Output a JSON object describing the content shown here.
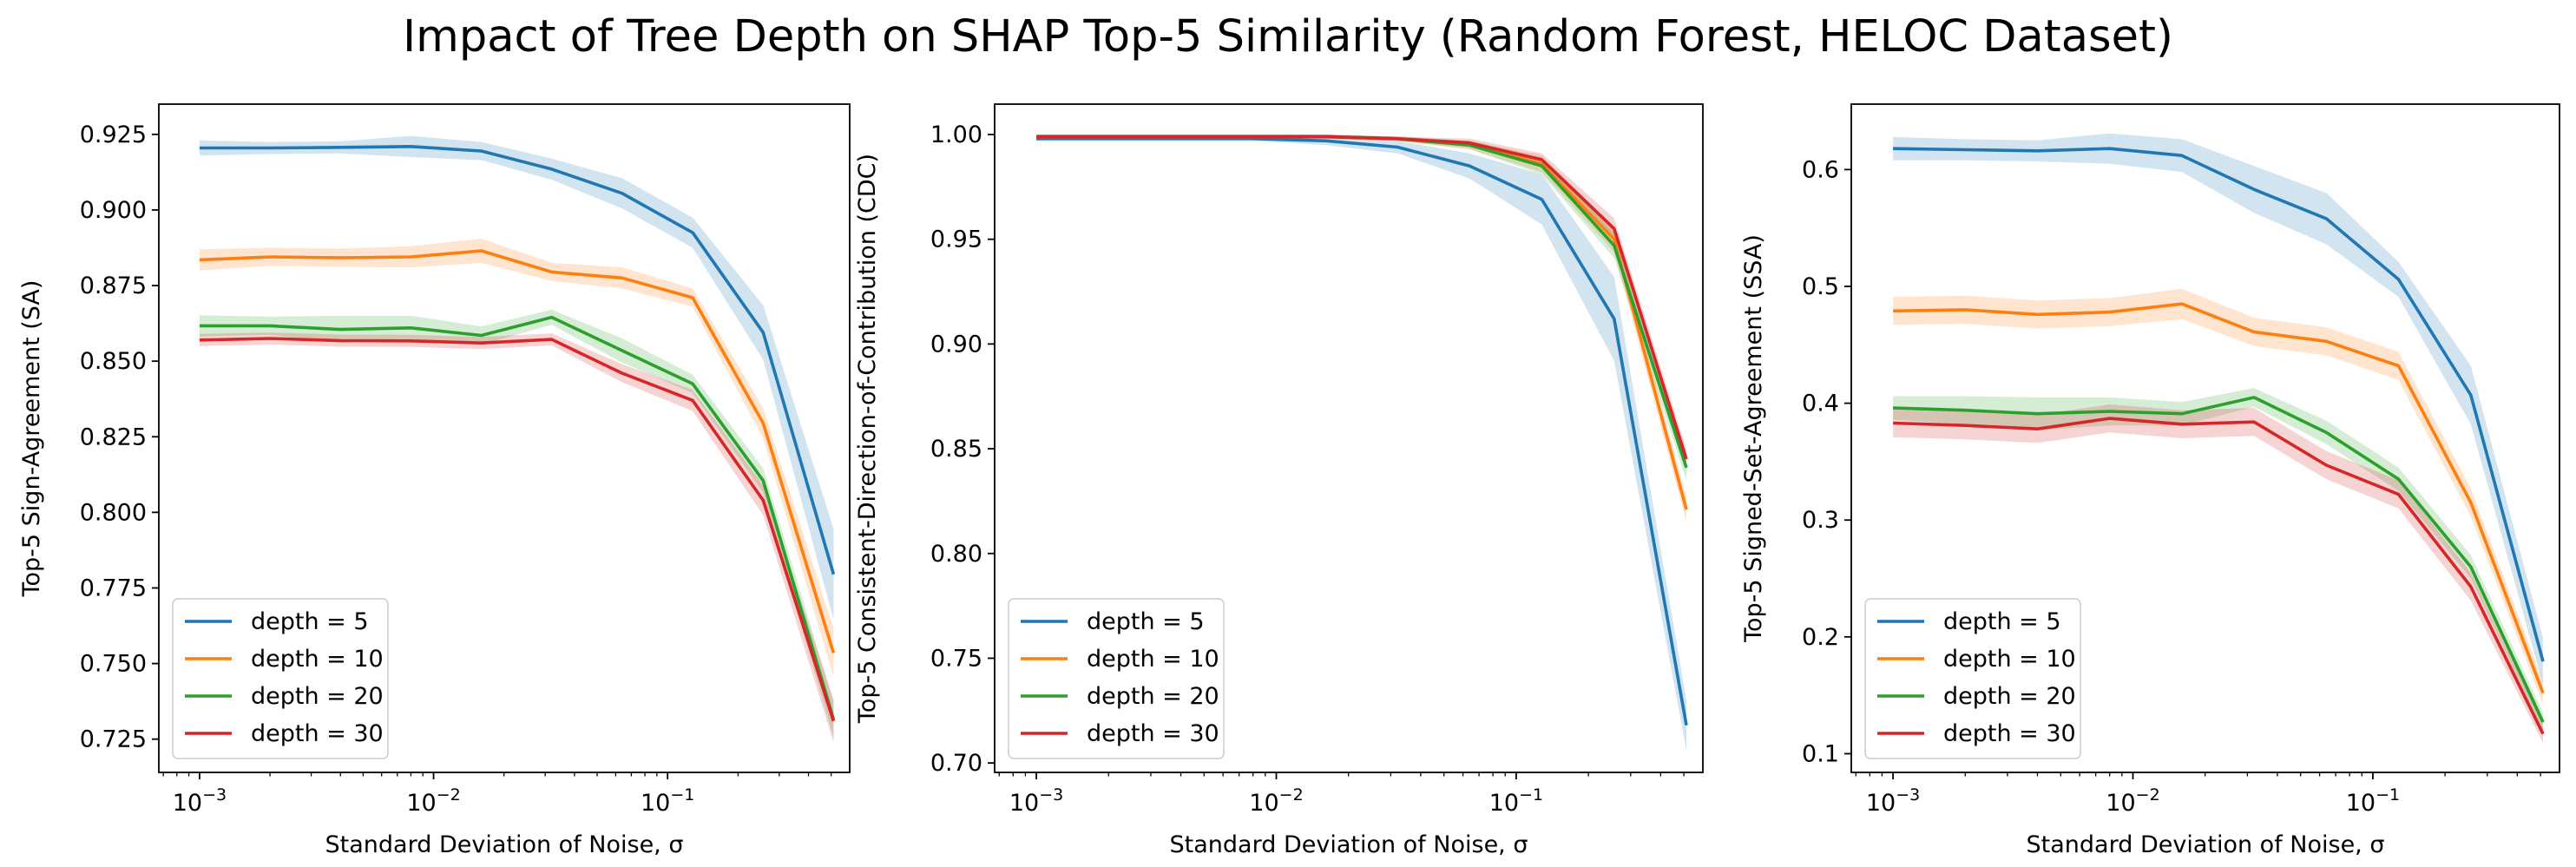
{
  "figure": {
    "title": "Impact of Tree Depth on SHAP Top-5 Similarity (Random Forest, HELOC Dataset)"
  },
  "series_colors": [
    "#1f77b4",
    "#ff7f0e",
    "#2ca02c",
    "#d62728"
  ],
  "chart_data": [
    {
      "type": "line",
      "title": "",
      "xlabel": "Standard Deviation of Noise, σ",
      "ylabel": "Top-5 Sign-Agreement (SA)",
      "xscale": "log",
      "xlim": [
        0.00067,
        0.6
      ],
      "ylim": [
        0.714,
        0.935
      ],
      "yticks": [
        0.725,
        0.75,
        0.775,
        0.8,
        0.825,
        0.85,
        0.875,
        0.9,
        0.925
      ],
      "ytick_labels": [
        "0.725",
        "0.750",
        "0.775",
        "0.800",
        "0.825",
        "0.850",
        "0.875",
        "0.900",
        "0.925"
      ],
      "xticks": [
        0.001,
        0.01,
        0.1
      ],
      "xtick_labels": [
        [
          "10",
          "−3"
        ],
        [
          "10",
          "−2"
        ],
        [
          "10",
          "−1"
        ]
      ],
      "legend_position": "lower-left",
      "x": [
        0.001,
        0.002,
        0.004,
        0.008,
        0.016,
        0.032,
        0.064,
        0.128,
        0.256,
        0.512
      ],
      "series": [
        {
          "name": "depth = 5",
          "values": [
            0.9205,
            0.9205,
            0.9207,
            0.921,
            0.9195,
            0.9135,
            0.9055,
            0.8925,
            0.8595,
            0.7795
          ],
          "band": [
            0.0025,
            0.002,
            0.002,
            0.0035,
            0.003,
            0.0035,
            0.005,
            0.005,
            0.009,
            0.015
          ]
        },
        {
          "name": "depth = 10",
          "values": [
            0.8835,
            0.8845,
            0.8842,
            0.8845,
            0.8865,
            0.8795,
            0.8775,
            0.871,
            0.8295,
            0.7535
          ],
          "band": [
            0.0035,
            0.003,
            0.003,
            0.0035,
            0.004,
            0.003,
            0.0035,
            0.003,
            0.005,
            0.008
          ]
        },
        {
          "name": "depth = 20",
          "values": [
            0.8617,
            0.8617,
            0.8605,
            0.861,
            0.8585,
            0.8645,
            0.8535,
            0.8425,
            0.8105,
            0.7315
          ],
          "band": [
            0.0035,
            0.003,
            0.0045,
            0.004,
            0.003,
            0.0025,
            0.004,
            0.003,
            0.004,
            0.006
          ]
        },
        {
          "name": "depth = 30",
          "values": [
            0.857,
            0.8575,
            0.8568,
            0.8567,
            0.856,
            0.8572,
            0.846,
            0.837,
            0.804,
            0.731
          ],
          "band": [
            0.002,
            0.002,
            0.002,
            0.002,
            0.002,
            0.002,
            0.003,
            0.0035,
            0.005,
            0.007
          ]
        }
      ]
    },
    {
      "type": "line",
      "title": "",
      "xlabel": "Standard Deviation of Noise, σ",
      "ylabel": "Top-5 Consistent-Direction-of-Contribution (CDC)",
      "xscale": "log",
      "xlim": [
        0.00067,
        0.6
      ],
      "ylim": [
        0.6955,
        1.0145
      ],
      "yticks": [
        0.7,
        0.75,
        0.8,
        0.85,
        0.9,
        0.95,
        1.0
      ],
      "ytick_labels": [
        "0.70",
        "0.75",
        "0.80",
        "0.85",
        "0.90",
        "0.95",
        "1.00"
      ],
      "xticks": [
        0.001,
        0.01,
        0.1
      ],
      "xtick_labels": [
        [
          "10",
          "−3"
        ],
        [
          "10",
          "−2"
        ],
        [
          "10",
          "−1"
        ]
      ],
      "legend_position": "lower-left",
      "x": [
        0.001,
        0.002,
        0.004,
        0.008,
        0.016,
        0.032,
        0.064,
        0.128,
        0.256,
        0.512
      ],
      "series": [
        {
          "name": "depth = 5",
          "values": [
            0.998,
            0.998,
            0.998,
            0.998,
            0.997,
            0.994,
            0.985,
            0.969,
            0.912,
            0.718
          ],
          "band": [
            0.001,
            0.001,
            0.001,
            0.001,
            0.002,
            0.003,
            0.006,
            0.012,
            0.02,
            0.012
          ]
        },
        {
          "name": "depth = 10",
          "values": [
            0.999,
            0.999,
            0.999,
            0.999,
            0.999,
            0.998,
            0.995,
            0.986,
            0.95,
            0.821
          ],
          "band": [
            0.001,
            0.001,
            0.001,
            0.001,
            0.001,
            0.001,
            0.002,
            0.004,
            0.006,
            0.006
          ]
        },
        {
          "name": "depth = 20",
          "values": [
            0.999,
            0.999,
            0.999,
            0.999,
            0.999,
            0.998,
            0.995,
            0.985,
            0.947,
            0.841
          ],
          "band": [
            0.001,
            0.001,
            0.001,
            0.001,
            0.001,
            0.001,
            0.002,
            0.004,
            0.006,
            0.006
          ]
        },
        {
          "name": "depth = 30",
          "values": [
            0.999,
            0.999,
            0.999,
            0.999,
            0.999,
            0.998,
            0.996,
            0.988,
            0.955,
            0.845
          ],
          "band": [
            0.001,
            0.001,
            0.001,
            0.001,
            0.001,
            0.001,
            0.002,
            0.003,
            0.005,
            0.005
          ]
        }
      ]
    },
    {
      "type": "line",
      "title": "",
      "xlabel": "Standard Deviation of Noise, σ",
      "ylabel": "Top-5 Signed-Set-Agreement (SSA)",
      "xscale": "log",
      "xlim": [
        0.00067,
        0.6
      ],
      "ylim": [
        0.084,
        0.656
      ],
      "yticks": [
        0.1,
        0.2,
        0.3,
        0.4,
        0.5,
        0.6
      ],
      "ytick_labels": [
        "0.1",
        "0.2",
        "0.3",
        "0.4",
        "0.5",
        "0.6"
      ],
      "xticks": [
        0.001,
        0.01,
        0.1
      ],
      "xtick_labels": [
        [
          "10",
          "−3"
        ],
        [
          "10",
          "−2"
        ],
        [
          "10",
          "−1"
        ]
      ],
      "legend_position": "lower-left",
      "x": [
        0.001,
        0.002,
        0.004,
        0.008,
        0.016,
        0.032,
        0.064,
        0.128,
        0.256,
        0.512
      ],
      "series": [
        {
          "name": "depth = 5",
          "values": [
            0.618,
            0.617,
            0.616,
            0.618,
            0.612,
            0.583,
            0.558,
            0.506,
            0.407,
            0.179
          ],
          "band": [
            0.01,
            0.009,
            0.009,
            0.013,
            0.014,
            0.02,
            0.022,
            0.015,
            0.025,
            0.02
          ]
        },
        {
          "name": "depth = 10",
          "values": [
            0.479,
            0.48,
            0.476,
            0.478,
            0.485,
            0.461,
            0.453,
            0.432,
            0.315,
            0.152
          ],
          "band": [
            0.012,
            0.012,
            0.012,
            0.012,
            0.013,
            0.012,
            0.012,
            0.012,
            0.012,
            0.01
          ]
        },
        {
          "name": "depth = 20",
          "values": [
            0.396,
            0.394,
            0.391,
            0.393,
            0.391,
            0.405,
            0.375,
            0.335,
            0.26,
            0.127
          ],
          "band": [
            0.01,
            0.012,
            0.014,
            0.012,
            0.01,
            0.008,
            0.01,
            0.01,
            0.01,
            0.008
          ]
        },
        {
          "name": "depth = 30",
          "values": [
            0.383,
            0.381,
            0.378,
            0.387,
            0.382,
            0.384,
            0.347,
            0.322,
            0.243,
            0.117
          ],
          "band": [
            0.012,
            0.012,
            0.012,
            0.012,
            0.012,
            0.012,
            0.012,
            0.012,
            0.012,
            0.008
          ]
        }
      ]
    }
  ]
}
